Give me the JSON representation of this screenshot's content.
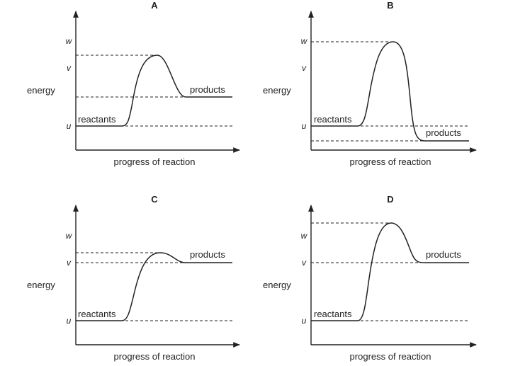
{
  "graphs": [
    {
      "title": "A",
      "y_label": "energy",
      "x_label": "progress of reaction",
      "reactants": "reactants",
      "products": "products",
      "level_w": "w",
      "level_v": "v",
      "level_u": "u"
    },
    {
      "title": "B",
      "y_label": "energy",
      "x_label": "progress of reaction",
      "reactants": "reactants",
      "products": "products",
      "level_w": "w",
      "level_v": "v",
      "level_u": "u"
    },
    {
      "title": "C",
      "y_label": "energy",
      "x_label": "progress of reaction",
      "reactants": "reactants",
      "products": "products",
      "level_w": "w",
      "level_v": "v",
      "level_u": "u"
    },
    {
      "title": "D",
      "y_label": "energy",
      "x_label": "progress of reaction",
      "reactants": "reactants",
      "products": "products",
      "level_w": "w",
      "level_v": "v",
      "level_u": "u"
    }
  ]
}
